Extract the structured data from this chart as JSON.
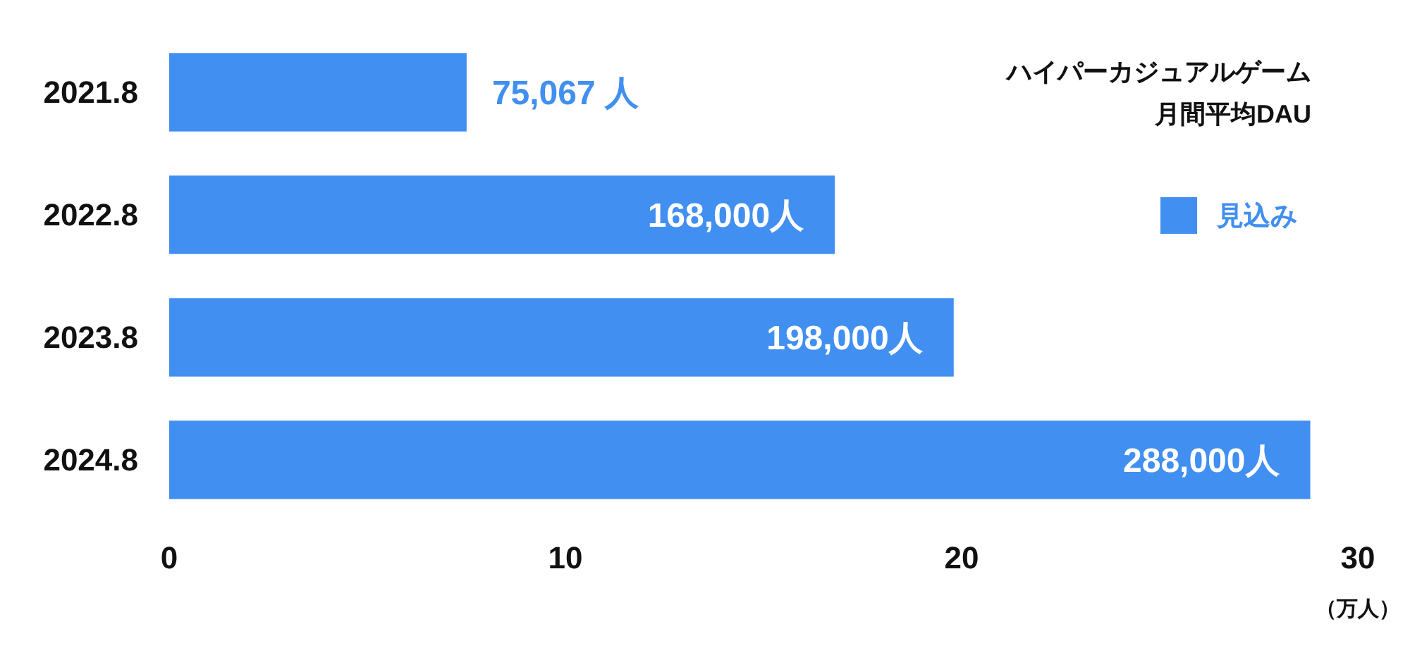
{
  "chart_data": {
    "type": "bar",
    "orientation": "horizontal",
    "title": "ハイパーカジュアルゲーム",
    "subtitle": "月間平均DAU",
    "xlabel": "（万人）",
    "categories": [
      "2021.8",
      "2022.8",
      "2023.8",
      "2024.8"
    ],
    "series": [
      {
        "name": "見込み",
        "color": "#418ff0",
        "values": [
          7.5067,
          16.8,
          19.8,
          28.8
        ]
      }
    ],
    "annotations": [
      {
        "text": "75,067 人",
        "x": 7.5067,
        "y": "2021.8"
      },
      {
        "text": "168,000人",
        "x": 16.8,
        "y": "2022.8"
      },
      {
        "text": "198,000人",
        "x": 19.8,
        "y": "2023.8"
      },
      {
        "text": "288,000人",
        "x": 28.8,
        "y": "2024.8"
      }
    ],
    "xlim": [
      0,
      30
    ],
    "xticks": [
      0,
      10,
      20,
      30
    ],
    "grid": false,
    "legend": "right"
  }
}
